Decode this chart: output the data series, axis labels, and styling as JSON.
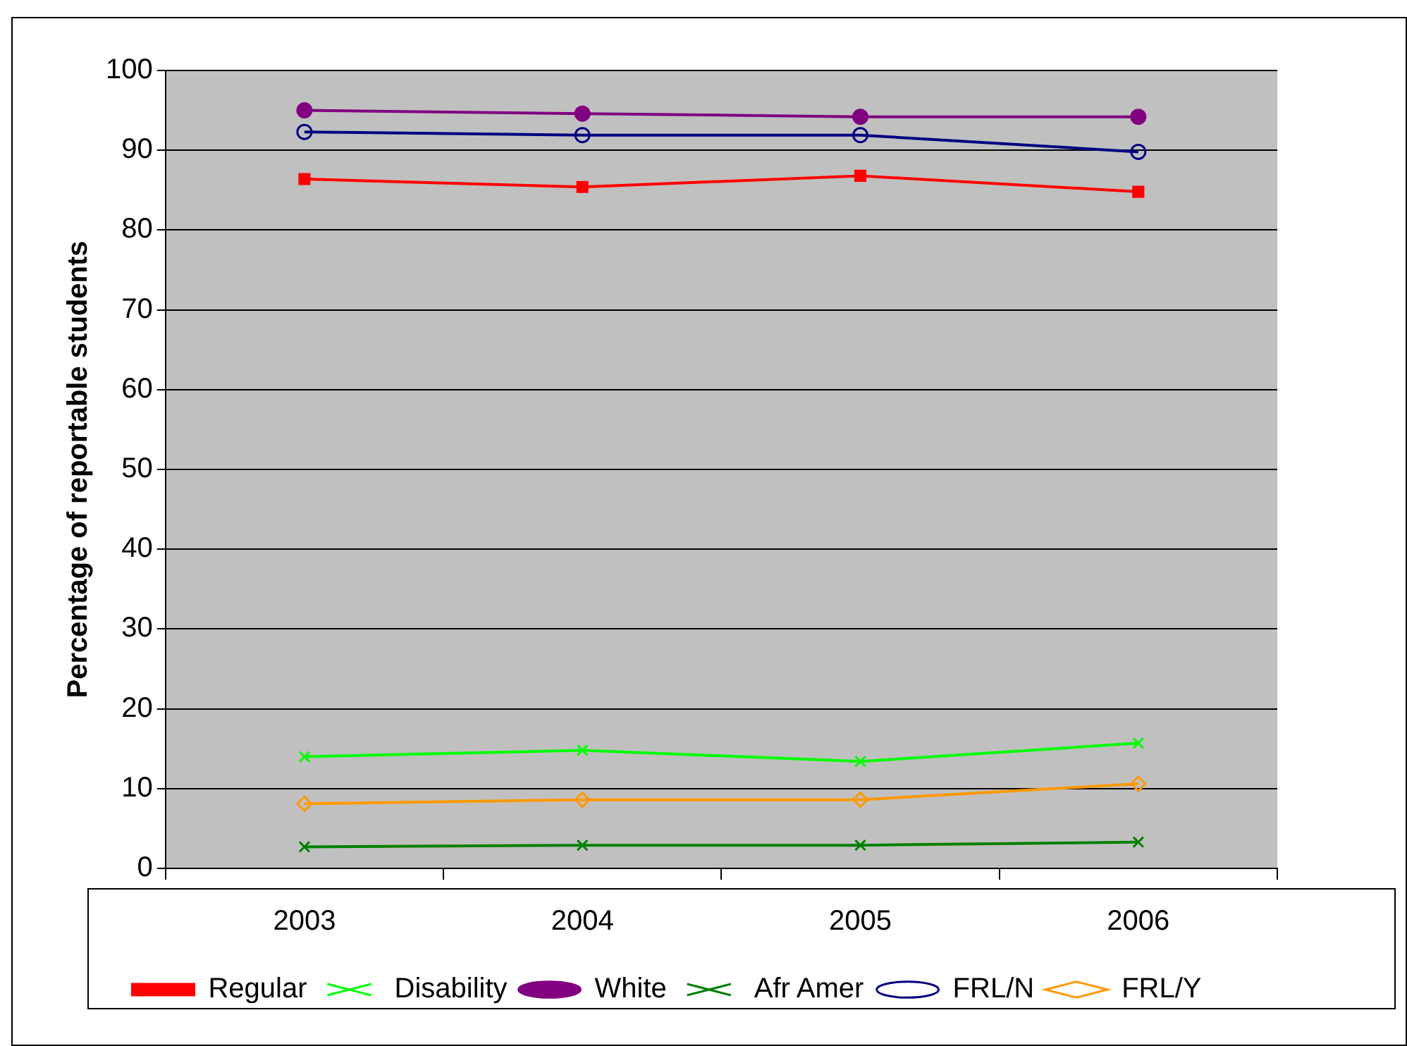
{
  "chart_data": {
    "type": "line",
    "ylabel": "Percentage of reportable students",
    "categories": [
      "2003",
      "2004",
      "2005",
      "2006"
    ],
    "ylim": [
      0,
      100
    ],
    "yticks": [
      0,
      10,
      20,
      30,
      40,
      50,
      60,
      70,
      80,
      90,
      100
    ],
    "grid": "y",
    "legend": "bottom",
    "line_style": "solid",
    "series": [
      {
        "name": "Regular",
        "color": "#ff0000",
        "marker": "square",
        "values": [
          86.4,
          85.4,
          86.8,
          84.8
        ]
      },
      {
        "name": "Disability",
        "color": "#00ff00",
        "marker": "cross",
        "values": [
          14.0,
          14.8,
          13.4,
          15.7
        ]
      },
      {
        "name": "White",
        "color": "#800080",
        "marker": "circle",
        "values": [
          95.0,
          94.6,
          94.2,
          94.2
        ]
      },
      {
        "name": "Afr Amer",
        "color": "#008000",
        "marker": "cross",
        "values": [
          2.7,
          2.9,
          2.9,
          3.3
        ]
      },
      {
        "name": "FRL/N",
        "color": "#000080",
        "marker": "circle",
        "values": [
          92.3,
          91.9,
          91.9,
          89.8
        ]
      },
      {
        "name": "FRL/Y",
        "color": "#ff9900",
        "marker": "diamond",
        "values": [
          8.1,
          8.6,
          8.6,
          10.6
        ]
      }
    ]
  }
}
